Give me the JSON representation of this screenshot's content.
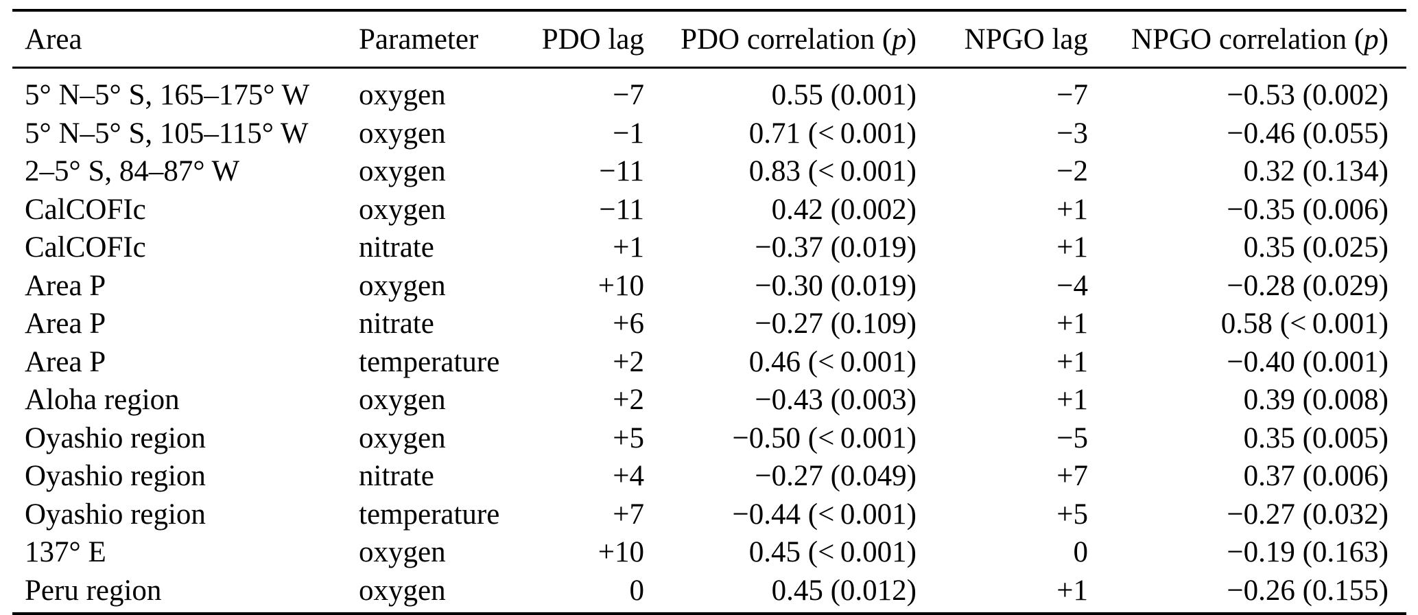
{
  "colors": {
    "background": "#ffffff",
    "text": "#000000",
    "rule": "#000000"
  },
  "table": {
    "header": {
      "area": "Area",
      "parameter": "Parameter",
      "pdo_lag": "PDO lag",
      "pdo_corr": {
        "prefix": "PDO correlation (",
        "italic": "p",
        "suffix": ")"
      },
      "npgo_lag": "NPGO lag",
      "npgo_corr": {
        "prefix": "NPGO correlation (",
        "italic": "p",
        "suffix": ")"
      }
    },
    "rows": [
      {
        "area": "5° N–5° S, 165–175° W",
        "parameter": "oxygen",
        "pdo_lag": "−7",
        "pdo_correlation": "0.55 (0.001)",
        "npgo_lag": "−7",
        "npgo_correlation": "−0.53 (0.002)"
      },
      {
        "area": "5° N–5° S, 105–115° W",
        "parameter": "oxygen",
        "pdo_lag": "−1",
        "pdo_correlation": "0.71 (< 0.001)",
        "npgo_lag": "−3",
        "npgo_correlation": "−0.46 (0.055)"
      },
      {
        "area": "2–5° S, 84–87° W",
        "parameter": "oxygen",
        "pdo_lag": "−11",
        "pdo_correlation": "0.83 (< 0.001)",
        "npgo_lag": "−2",
        "npgo_correlation": "0.32 (0.134)"
      },
      {
        "area": "CalCOFIc",
        "parameter": "oxygen",
        "pdo_lag": "−11",
        "pdo_correlation": "0.42 (0.002)",
        "npgo_lag": "+1",
        "npgo_correlation": "−0.35 (0.006)"
      },
      {
        "area": "CalCOFIc",
        "parameter": "nitrate",
        "pdo_lag": "+1",
        "pdo_correlation": "−0.37 (0.019)",
        "npgo_lag": "+1",
        "npgo_correlation": "0.35 (0.025)"
      },
      {
        "area": "Area P",
        "parameter": "oxygen",
        "pdo_lag": "+10",
        "pdo_correlation": "−0.30 (0.019)",
        "npgo_lag": "−4",
        "npgo_correlation": "−0.28 (0.029)"
      },
      {
        "area": "Area P",
        "parameter": "nitrate",
        "pdo_lag": "+6",
        "pdo_correlation": "−0.27 (0.109)",
        "npgo_lag": "+1",
        "npgo_correlation": "0.58 (< 0.001)"
      },
      {
        "area": "Area P",
        "parameter": "temperature",
        "pdo_lag": "+2",
        "pdo_correlation": "0.46 (< 0.001)",
        "npgo_lag": "+1",
        "npgo_correlation": "−0.40 (0.001)"
      },
      {
        "area": "Aloha region",
        "parameter": "oxygen",
        "pdo_lag": "+2",
        "pdo_correlation": "−0.43 (0.003)",
        "npgo_lag": "+1",
        "npgo_correlation": "0.39 (0.008)"
      },
      {
        "area": "Oyashio region",
        "parameter": "oxygen",
        "pdo_lag": "+5",
        "pdo_correlation": "−0.50 (< 0.001)",
        "npgo_lag": "−5",
        "npgo_correlation": "0.35 (0.005)"
      },
      {
        "area": "Oyashio region",
        "parameter": "nitrate",
        "pdo_lag": "+4",
        "pdo_correlation": "−0.27 (0.049)",
        "npgo_lag": "+7",
        "npgo_correlation": "0.37 (0.006)"
      },
      {
        "area": "Oyashio region",
        "parameter": "temperature",
        "pdo_lag": "+7",
        "pdo_correlation": "−0.44 (< 0.001)",
        "npgo_lag": "+5",
        "npgo_correlation": "−0.27 (0.032)"
      },
      {
        "area": "137° E",
        "parameter": "oxygen",
        "pdo_lag": "+10",
        "pdo_correlation": "0.45 (< 0.001)",
        "npgo_lag": "0",
        "npgo_correlation": "−0.19 (0.163)"
      },
      {
        "area": "Peru region",
        "parameter": "oxygen",
        "pdo_lag": "0",
        "pdo_correlation": "0.45 (0.012)",
        "npgo_lag": "+1",
        "npgo_correlation": "−0.26 (0.155)"
      }
    ]
  }
}
